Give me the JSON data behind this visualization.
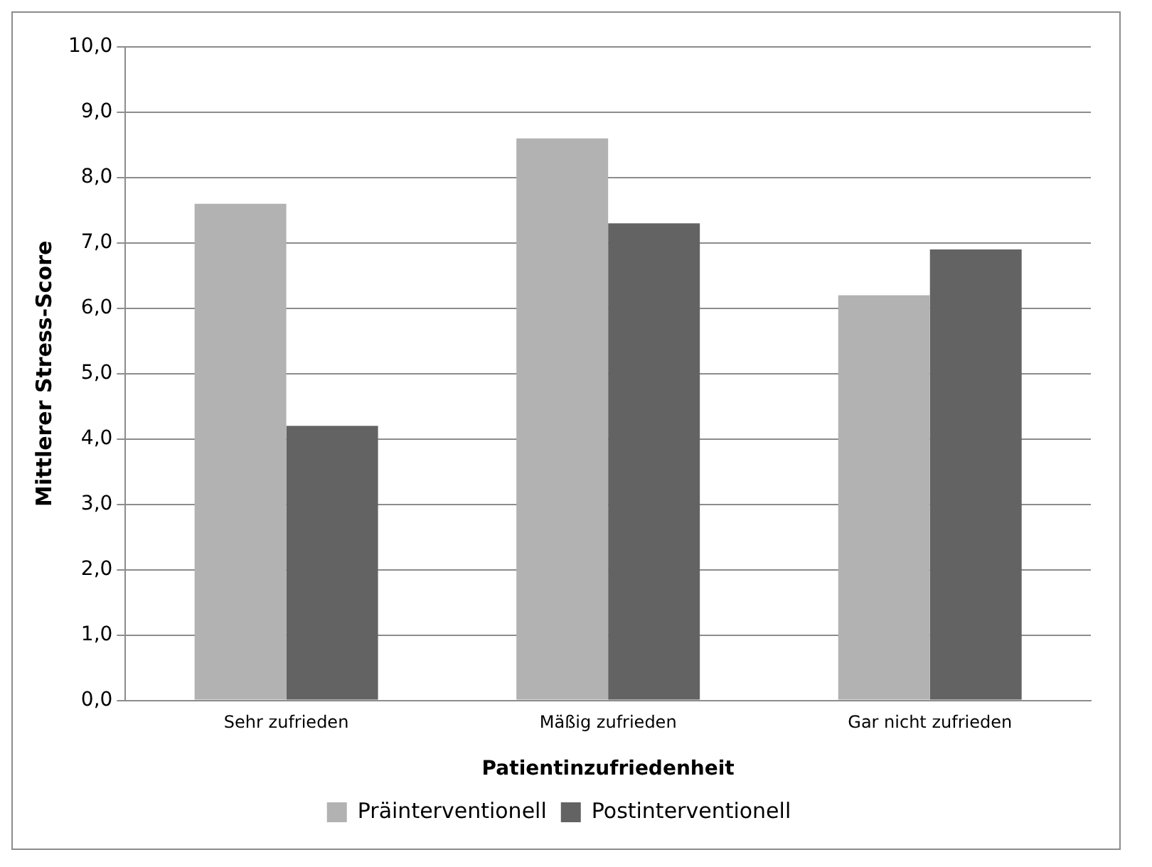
{
  "chart_data": {
    "type": "bar",
    "xlabel": "Patientinzufriedenheit",
    "ylabel": "Mittlerer Stress-Score",
    "categories": [
      "Sehr zufrieden",
      "Mäßig zufrieden",
      "Gar nicht zufrieden"
    ],
    "series": [
      {
        "name": "Präinterventionell",
        "color": "#b2b2b2",
        "values": [
          7.6,
          8.6,
          6.2
        ]
      },
      {
        "name": "Postinterventionell",
        "color": "#636363",
        "values": [
          4.2,
          7.3,
          6.9
        ]
      }
    ],
    "ylim": [
      0,
      10
    ],
    "yticks": [
      {
        "value": 0,
        "label": "0,0"
      },
      {
        "value": 1,
        "label": "1,0"
      },
      {
        "value": 2,
        "label": "2,0"
      },
      {
        "value": 3,
        "label": "3,0"
      },
      {
        "value": 4,
        "label": "4,0"
      },
      {
        "value": 5,
        "label": "5,0"
      },
      {
        "value": 6,
        "label": "6,0"
      },
      {
        "value": 7,
        "label": "7,0"
      },
      {
        "value": 8,
        "label": "8,0"
      },
      {
        "value": 9,
        "label": "9,0"
      },
      {
        "value": 10,
        "label": "10,0"
      }
    ],
    "grid": "y",
    "legend": "bottom"
  }
}
